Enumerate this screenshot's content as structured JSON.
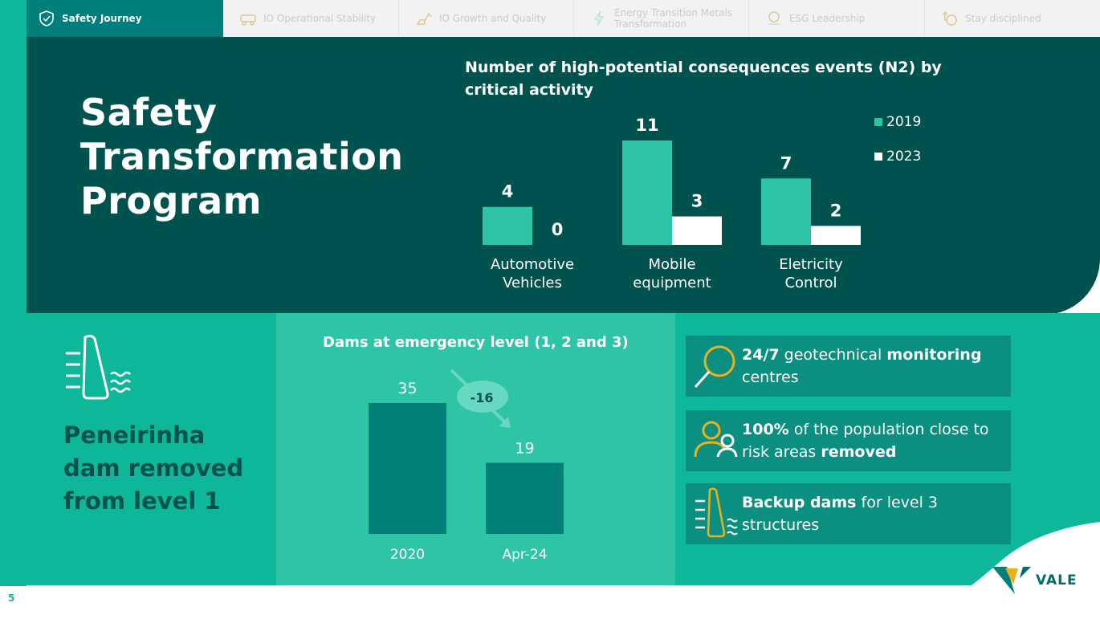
{
  "page_number": "5",
  "nav": {
    "tabs": [
      {
        "label": "Safety Journey",
        "icon": "shield-check-icon",
        "active": true
      },
      {
        "label": "IO Operational Stability",
        "icon": "truck-icon",
        "active": false
      },
      {
        "label": "IO Growth and Quality",
        "icon": "excavator-icon",
        "active": false
      },
      {
        "label": "Energy Transition Metals Transformation",
        "icon": "lightning-icon",
        "active": false
      },
      {
        "label": "ESG Leadership",
        "icon": "leaf-hand-icon",
        "active": false
      },
      {
        "label": "Stay disciplined",
        "icon": "coin-arrow-icon",
        "active": false
      }
    ]
  },
  "hero": {
    "title_lines": [
      "Safety",
      "Transformation",
      "Program"
    ]
  },
  "chart_data": [
    {
      "type": "bar",
      "title": "Number of high-potential consequences events (N2) by critical activity",
      "categories": [
        "Automotive Vehicles",
        "Mobile equipment",
        "Eletricity Control"
      ],
      "category_lines": [
        [
          "Automotive",
          "Vehicles"
        ],
        [
          "Mobile",
          "equipment"
        ],
        [
          "Eletricity",
          "Control"
        ]
      ],
      "series": [
        {
          "name": "2019",
          "values": [
            4,
            11,
            7
          ],
          "color": "#2ec4a6"
        },
        {
          "name": "2023",
          "values": [
            0,
            3,
            2
          ],
          "color": "#ffffff"
        }
      ],
      "ylim": [
        0,
        11
      ],
      "legend": "top-right"
    },
    {
      "type": "bar",
      "title": "Dams at emergency level (1, 2 and 3)",
      "categories": [
        "2020",
        "Apr-24"
      ],
      "values": [
        35,
        19
      ],
      "color": "#008079",
      "annotation": "-16",
      "ylim": [
        0,
        35
      ]
    }
  ],
  "dam_highlight": {
    "lines": [
      "Peneirinha",
      "dam removed",
      "from level 1"
    ],
    "icon": "dam-icon"
  },
  "info_boxes": [
    {
      "icon": "magnifier-icon",
      "parts": [
        [
          "24/7",
          true
        ],
        [
          " geotechnical ",
          false
        ],
        [
          "monitoring",
          true
        ],
        [
          " centres",
          false
        ]
      ]
    },
    {
      "icon": "people-icon",
      "parts": [
        [
          "100%",
          true
        ],
        [
          " of the population close to risk areas ",
          false
        ],
        [
          "removed",
          true
        ]
      ]
    },
    {
      "icon": "dam-icon",
      "parts": [
        [
          "Backup dams",
          true
        ],
        [
          " for level 3 structures",
          false
        ]
      ]
    }
  ],
  "logo": {
    "text": "VALE"
  },
  "colors": {
    "dark_teal": "#00524f",
    "mid_teal": "#0fb79a",
    "light_teal": "#2ec4a6",
    "box_teal": "#0b8f81",
    "bar_dark": "#008079",
    "accent_yellow": "#e8b21f"
  }
}
